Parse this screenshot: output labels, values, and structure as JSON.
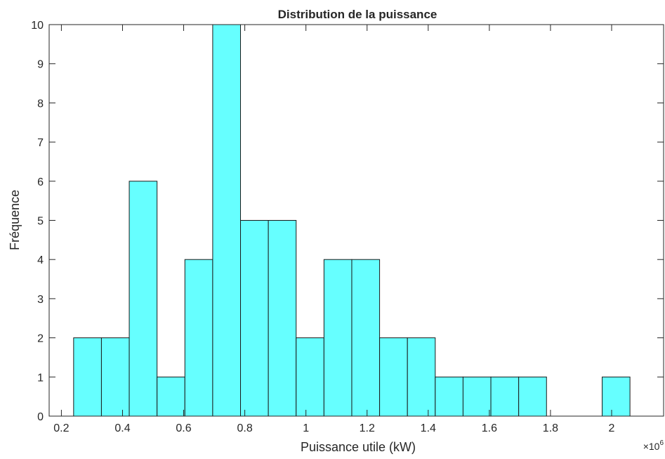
{
  "chart_data": {
    "type": "histogram",
    "title": "Distribution de la puissance",
    "xlabel": "Puissance utile (kW)",
    "ylabel": "Fréquence",
    "x_exponent_base": "×10",
    "x_exponent_power": "6",
    "xlim": [
      0.16,
      2.17
    ],
    "ylim": [
      0,
      10
    ],
    "x_tick_values": [
      0.2,
      0.4,
      0.6,
      0.8,
      1.0,
      1.2,
      1.4,
      1.6,
      1.8,
      2.0
    ],
    "x_tick_labels": [
      "0.2",
      "0.4",
      "0.6",
      "0.8",
      "1",
      "1.2",
      "1.4",
      "1.6",
      "1.8",
      "2"
    ],
    "y_tick_values": [
      0,
      1,
      2,
      3,
      4,
      5,
      6,
      7,
      8,
      9,
      10
    ],
    "y_tick_labels": [
      "0",
      "1",
      "2",
      "3",
      "4",
      "5",
      "6",
      "7",
      "8",
      "9",
      "10"
    ],
    "bin_edges": [
      0.24,
      0.331,
      0.422,
      0.513,
      0.604,
      0.695,
      0.786,
      0.877,
      0.968,
      1.059,
      1.15,
      1.241,
      1.332,
      1.423,
      1.514,
      1.605,
      1.696,
      1.787,
      1.878,
      1.969,
      2.06
    ],
    "counts": [
      2,
      2,
      6,
      1,
      4,
      10,
      5,
      5,
      2,
      4,
      4,
      2,
      2,
      1,
      1,
      1,
      1,
      0,
      0,
      1
    ],
    "bar_color": "#66ffff",
    "edge_color": "#1a1a1a",
    "grid": false,
    "box": true
  }
}
